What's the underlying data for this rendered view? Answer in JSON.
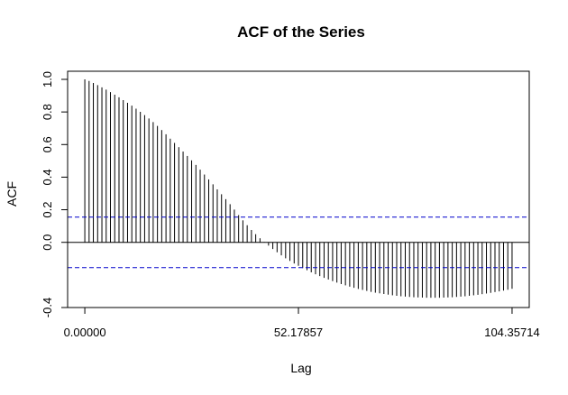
{
  "chart_data": {
    "type": "bar",
    "title": "ACF of the Series",
    "xlabel": "Lag",
    "ylabel": "ACF",
    "xlim": [
      -4.2,
      108.55
    ],
    "ylim": [
      -0.4,
      1.0
    ],
    "x_ticks": [
      0.0,
      52.17857,
      104.35714
    ],
    "x_tick_labels": [
      "0.00000",
      "52.17857",
      "104.35714"
    ],
    "y_ticks": [
      -0.4,
      0.0,
      0.2,
      0.4,
      0.6,
      0.8,
      1.0
    ],
    "y_tick_labels": [
      "-0.4",
      "0.0",
      "0.2",
      "0.4",
      "0.6",
      "0.8",
      "1.0"
    ],
    "confidence_bound": 0.155,
    "grid": false,
    "lag_step": 1.04357,
    "values": [
      1.0,
      0.99,
      0.978,
      0.965,
      0.951,
      0.937,
      0.922,
      0.906,
      0.89,
      0.873,
      0.856,
      0.839,
      0.82,
      0.801,
      0.781,
      0.76,
      0.738,
      0.714,
      0.689,
      0.663,
      0.636,
      0.61,
      0.584,
      0.557,
      0.53,
      0.503,
      0.475,
      0.446,
      0.416,
      0.386,
      0.356,
      0.325,
      0.295,
      0.265,
      0.234,
      0.201,
      0.167,
      0.135,
      0.105,
      0.076,
      0.05,
      0.025,
      0.002,
      -0.02,
      -0.041,
      -0.061,
      -0.08,
      -0.098,
      -0.114,
      -0.13,
      -0.144,
      -0.158,
      -0.171,
      -0.184,
      -0.196,
      -0.207,
      -0.218,
      -0.228,
      -0.238,
      -0.247,
      -0.256,
      -0.264,
      -0.272,
      -0.279,
      -0.286,
      -0.292,
      -0.298,
      -0.304,
      -0.309,
      -0.313,
      -0.317,
      -0.321,
      -0.325,
      -0.328,
      -0.331,
      -0.333,
      -0.335,
      -0.337,
      -0.338,
      -0.339,
      -0.34,
      -0.34,
      -0.34,
      -0.34,
      -0.339,
      -0.338,
      -0.337,
      -0.335,
      -0.333,
      -0.331,
      -0.328,
      -0.325,
      -0.322,
      -0.318,
      -0.314,
      -0.31,
      -0.305,
      -0.301,
      -0.296,
      -0.291,
      -0.285
    ]
  }
}
